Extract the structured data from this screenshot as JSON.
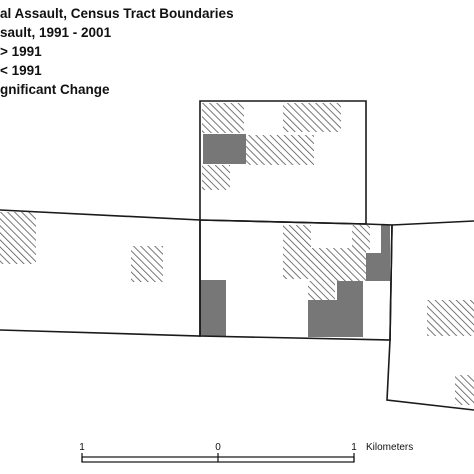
{
  "legend": {
    "title_line_1": "al Assault, Census Tract Boundaries",
    "title_line_2": "sault, 1991 - 2001",
    "item_increase": "> 1991",
    "item_decrease": "< 1991",
    "item_no_change": "gnificant Change"
  },
  "scale_bar": {
    "left_label": "1",
    "center_label": "0",
    "right_label": "1",
    "unit_label": "Kilometers"
  },
  "colors": {
    "tract_outline": "#1a1a1a",
    "increase_fill": "#777777",
    "decrease_hatch": "#555555",
    "background": "#ffffff"
  },
  "icons": {
    "hatch_pattern": "diagonal-hatch",
    "solid_fill": "solid-gray"
  }
}
